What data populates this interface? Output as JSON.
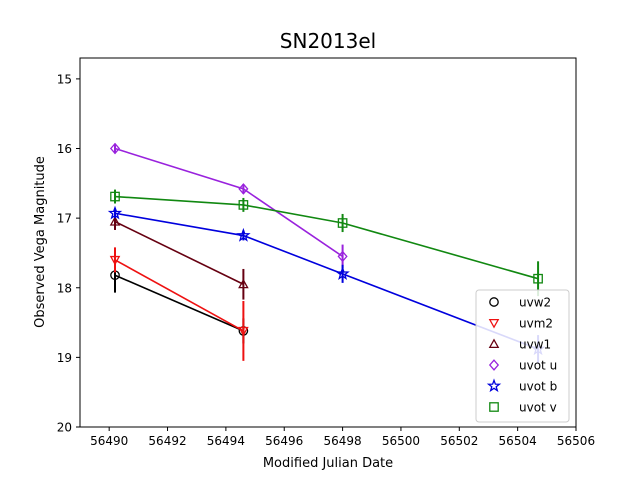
{
  "chart_data": {
    "type": "scatter",
    "title": "SN2013el",
    "xlabel": "Modified Julian Date",
    "ylabel": "Observed Vega Magnitude",
    "xlim": [
      56489,
      56506
    ],
    "ylim": [
      20,
      14.7
    ],
    "y_inverted": true,
    "x_ticks": [
      56490,
      56492,
      56494,
      56496,
      56498,
      56500,
      56502,
      56504,
      56506
    ],
    "y_ticks": [
      15,
      16,
      17,
      18,
      19,
      20
    ],
    "grid": false,
    "legend_position": "lower-right",
    "series": [
      {
        "name": "uvw2",
        "marker": "circle",
        "color": "#000000",
        "points": [
          {
            "x": 56490.2,
            "y": 17.82,
            "err": 0.25
          },
          {
            "x": 56494.6,
            "y": 18.62,
            "err": 0.18
          }
        ]
      },
      {
        "name": "uvm2",
        "marker": "triangle-down",
        "color": "#ee1111",
        "points": [
          {
            "x": 56490.2,
            "y": 17.6,
            "err": 0.18
          },
          {
            "x": 56494.6,
            "y": 18.62,
            "err": 0.43
          }
        ]
      },
      {
        "name": "uvw1",
        "marker": "triangle-up",
        "color": "#660011",
        "points": [
          {
            "x": 56490.2,
            "y": 17.05,
            "err": 0.12
          },
          {
            "x": 56494.6,
            "y": 17.95,
            "err": 0.22
          }
        ]
      },
      {
        "name": "uvot u",
        "marker": "diamond",
        "color": "#9922dd",
        "points": [
          {
            "x": 56490.2,
            "y": 16.0,
            "err": 0.07
          },
          {
            "x": 56494.6,
            "y": 16.58,
            "err": 0.07
          },
          {
            "x": 56498.0,
            "y": 17.55,
            "err": 0.17
          }
        ]
      },
      {
        "name": "uvot b",
        "marker": "star",
        "color": "#0000dd",
        "points": [
          {
            "x": 56490.2,
            "y": 16.93,
            "err": 0.07
          },
          {
            "x": 56494.6,
            "y": 17.25,
            "err": 0.07
          },
          {
            "x": 56498.0,
            "y": 17.8,
            "err": 0.13
          },
          {
            "x": 56504.7,
            "y": 18.88,
            "err": 0.2
          }
        ]
      },
      {
        "name": "uvot v",
        "marker": "square",
        "color": "#118811",
        "points": [
          {
            "x": 56490.2,
            "y": 16.69,
            "err": 0.1
          },
          {
            "x": 56494.6,
            "y": 16.81,
            "err": 0.1
          },
          {
            "x": 56498.0,
            "y": 17.07,
            "err": 0.13
          },
          {
            "x": 56504.7,
            "y": 17.87,
            "err": 0.25
          }
        ]
      }
    ]
  }
}
